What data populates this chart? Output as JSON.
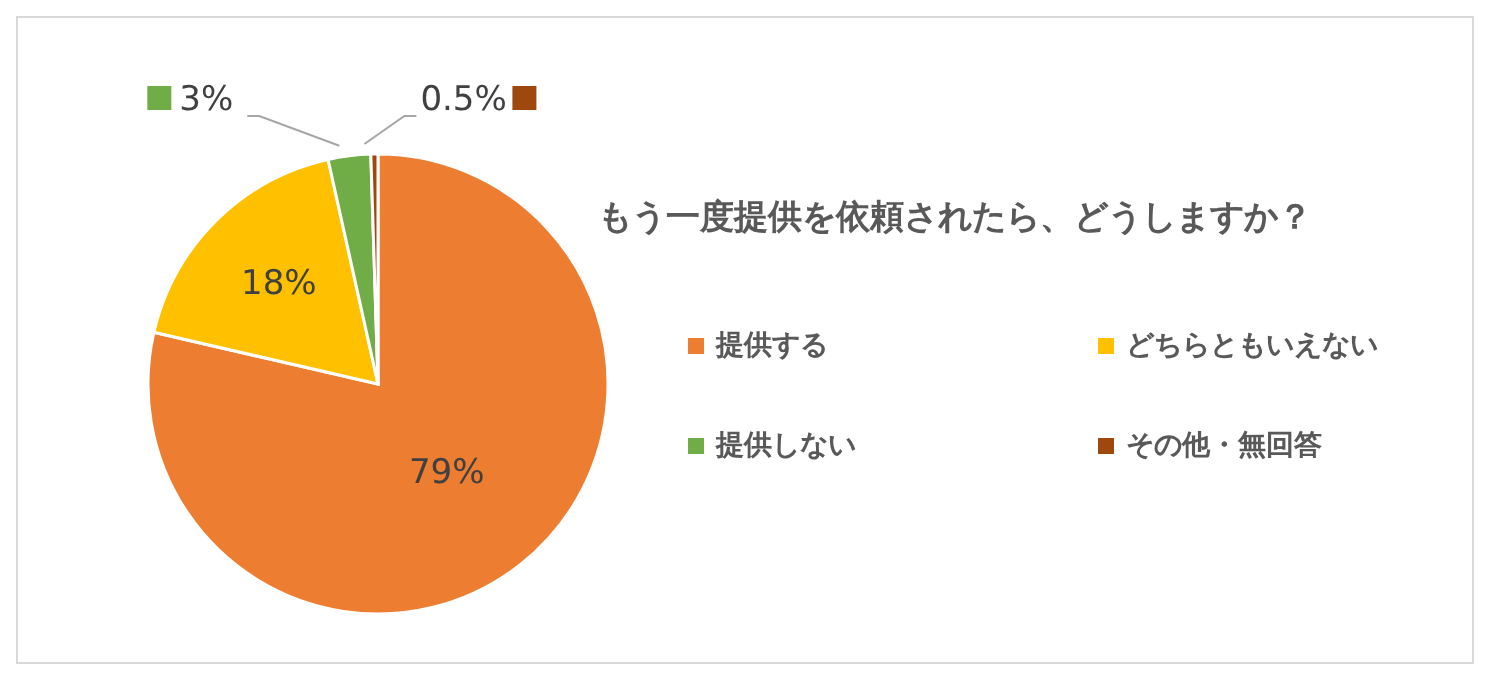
{
  "chart_data": {
    "type": "pie",
    "title": "もう一度提供を依頼されたら、どうしますか？",
    "categories": [
      "提供する",
      "どちらともいえない",
      "提供しない",
      "その他・無回答"
    ],
    "values": [
      79,
      18,
      3,
      0.5
    ],
    "colors": [
      "#ed7d31",
      "#ffc000",
      "#70ad47",
      "#9e480e"
    ],
    "value_labels": [
      "79%",
      "18%",
      "3%",
      "0.5%"
    ],
    "legend": "right"
  }
}
